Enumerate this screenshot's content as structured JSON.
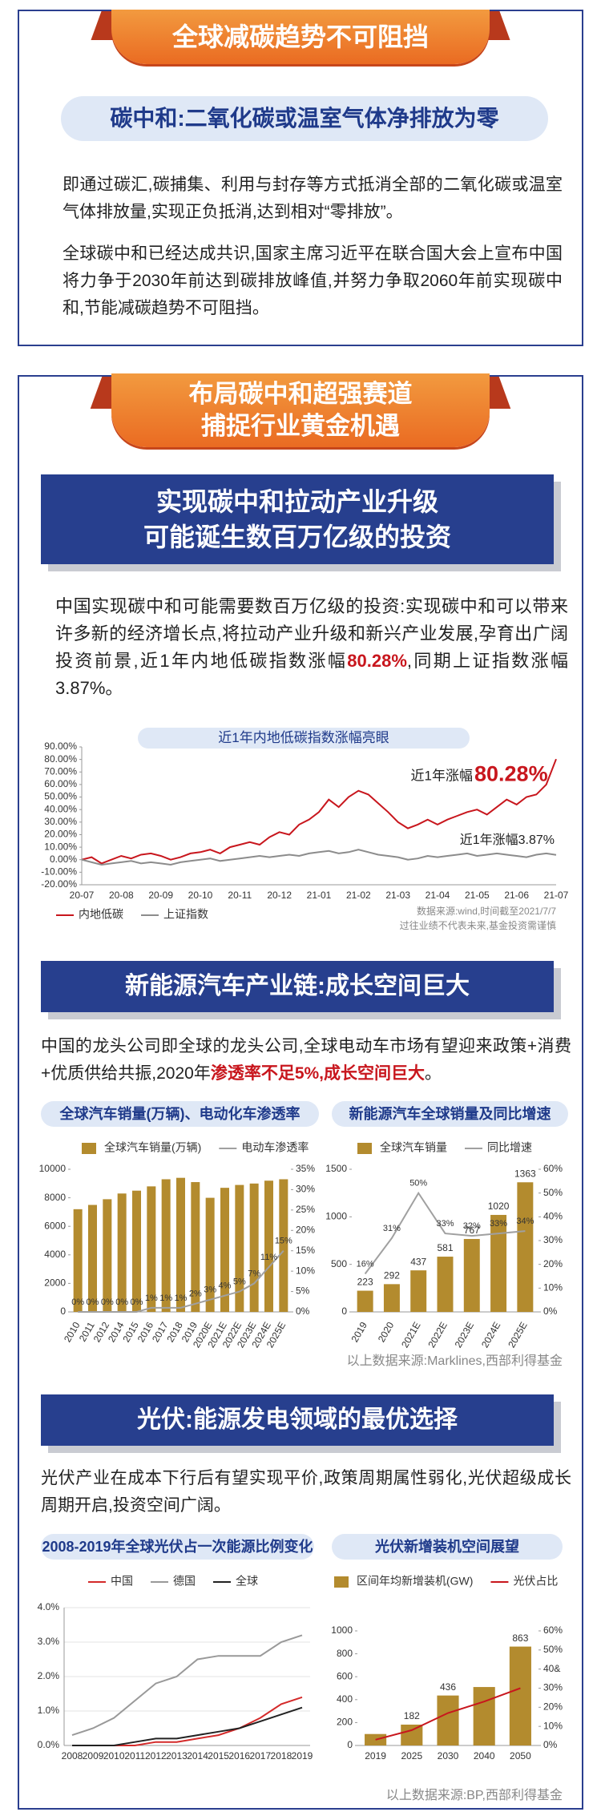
{
  "section1": {
    "banner": "全球减碳趋势不可阻挡",
    "subtitle": "碳中和:二氧化碳或温室气体净排放为零",
    "paragraphs": [
      "即通过碳汇,碳捕集、利用与封存等方式抵消全部的二氧化碳或温室气体排放量,实现正负抵消,达到相对“零排放”。",
      "全球碳中和已经达成共识,国家主席习近平在联合国大会上宣布中国将力争于2030年前达到碳排放峰值,并努力争取2060年前实现碳中和,节能减碳趋势不可阻挡。"
    ]
  },
  "section2": {
    "banner": [
      "布局碳中和超强赛道",
      "捕捉行业黄金机遇"
    ],
    "header": [
      "实现碳中和拉动产业升级",
      "可能诞生数百万亿级的投资"
    ],
    "paragraph": {
      "before": "中国实现碳中和可能需要数百万亿级的投资:实现碳中和可以带来许多新的经济增长点,将拉动产业升级和新兴产业发展,孕育出广阔投资前景,近1年内地低碳指数涨幅",
      "highlight": "80.28%",
      "after": ",同期上证指数涨幅3.87%。"
    }
  },
  "ev": {
    "header": "新能源汽车产业链:成长空间巨大",
    "paragraph": {
      "before": "中国的龙头公司即全球的龙头公司,全球电动车市场有望迎来政策+消费+优质供给共振,2020年",
      "highlight": "渗透率不足5%,成长空间巨大",
      "after": "。"
    },
    "source": "以上数据来源:Marklines,西部利得基金"
  },
  "pv": {
    "header": "光伏:能源发电领域的最优选择",
    "paragraph": "光伏产业在成本下行后有望实现平价,政策周期属性弱化,光伏超级成长周期开启,投资空间广阔。",
    "source": "以上数据来源:BP,西部利得基金"
  },
  "chart_data": [
    {
      "type": "line",
      "title": "近1年内地低碳指数涨幅亮眼",
      "categories": [
        "20-07",
        null,
        null,
        null,
        "20-08",
        null,
        null,
        null,
        "20-09",
        null,
        null,
        null,
        "20-10",
        null,
        null,
        null,
        "20-11",
        null,
        null,
        null,
        "20-12",
        null,
        null,
        null,
        "21-01",
        null,
        null,
        null,
        "21-02",
        null,
        null,
        null,
        "21-03",
        null,
        null,
        null,
        "21-04",
        null,
        null,
        null,
        "21-05",
        null,
        null,
        null,
        "21-06",
        null,
        null,
        null,
        "21-07"
      ],
      "series": [
        {
          "name": "内地低碳",
          "color": "#c8161d",
          "values": [
            0,
            2,
            -3,
            0,
            3,
            1,
            4,
            5,
            3,
            0,
            2,
            5,
            6,
            8,
            5,
            10,
            12,
            14,
            12,
            18,
            22,
            20,
            28,
            32,
            38,
            48,
            42,
            50,
            55,
            52,
            45,
            38,
            30,
            25,
            28,
            32,
            28,
            32,
            35,
            38,
            40,
            36,
            42,
            48,
            44,
            50,
            52,
            60,
            80.28
          ]
        },
        {
          "name": "上证指数",
          "color": "#8c8c8c",
          "values": [
            0,
            -2,
            -4,
            -3,
            -2,
            -1,
            -3,
            -2,
            -3,
            -4,
            -2,
            -1,
            0,
            1,
            -1,
            0,
            1,
            2,
            3,
            2,
            3,
            4,
            3,
            5,
            6,
            7,
            5,
            6,
            8,
            6,
            4,
            3,
            2,
            0,
            1,
            3,
            2,
            3,
            4,
            5,
            3,
            4,
            5,
            4,
            3,
            2,
            4,
            5,
            3.87
          ]
        }
      ],
      "ylim": [
        -20,
        90
      ],
      "yticks": [
        {
          "value": -20,
          "label": "-20.00%"
        },
        {
          "value": -10,
          "label": "-10.00%"
        },
        {
          "value": 0,
          "label": "0.00%"
        },
        {
          "value": 10,
          "label": "10.00%"
        },
        {
          "value": 20,
          "label": "20.00%"
        },
        {
          "value": 30,
          "label": "30.00%"
        },
        {
          "value": 40,
          "label": "40.00%"
        },
        {
          "value": 50,
          "label": "50.00%"
        },
        {
          "value": 60,
          "label": "60.00%"
        },
        {
          "value": 70,
          "label": "70.00%"
        },
        {
          "value": 80,
          "label": "80.00%"
        },
        {
          "value": 90,
          "label": "90.00%"
        }
      ],
      "grid": false,
      "legend": "bottom-left",
      "annotations": [
        "近1年涨幅",
        "80.28%",
        "近1年涨幅3.87%"
      ],
      "source": [
        "数据来源:wind,时间截至2021/7/7",
        "过往业绩不代表未来,基金投资需谨慎"
      ]
    },
    {
      "type": "combo",
      "title": "全球汽车销量(万辆)、电动化车渗透率",
      "categories": [
        "2010",
        "2011",
        "2012",
        "2014",
        "2015",
        "2016",
        "2017",
        "2018",
        "2019",
        "2020E",
        "2021E",
        "2022E",
        "2023E",
        "2024E",
        "2025E"
      ],
      "series": [
        {
          "name": "全球汽车销量(万辆)",
          "color": "#b38b2e",
          "mark": "bar",
          "values": [
            7200,
            7500,
            7900,
            8300,
            8500,
            8800,
            9300,
            9400,
            9100,
            8000,
            8700,
            8900,
            9000,
            9200,
            9300
          ]
        },
        {
          "name": "电动车渗透率",
          "color": "#a0a0a0",
          "mark": "line",
          "axis": "y2",
          "values": [
            0,
            0,
            0,
            0,
            0,
            1,
            1,
            1,
            2,
            3,
            4,
            5,
            7,
            11,
            15
          ],
          "value_labels": [
            "0%",
            "0%",
            "0%",
            "0%",
            "0%",
            "1%",
            "1%",
            "1%",
            "2%",
            "3%",
            "4%",
            "5%",
            "7%",
            "11%",
            "15%"
          ]
        }
      ],
      "ylim": [
        0,
        10000
      ],
      "yticks": [
        0,
        2000,
        4000,
        6000,
        8000,
        10000
      ],
      "y2lim": [
        0,
        35
      ],
      "y2ticks": [
        {
          "value": 0,
          "label": "0%"
        },
        {
          "value": 5,
          "label": "5%"
        },
        {
          "value": 10,
          "label": "10%"
        },
        {
          "value": 15,
          "label": "15%"
        },
        {
          "value": 20,
          "label": "20%"
        },
        {
          "value": 25,
          "label": "25%"
        },
        {
          "value": 30,
          "label": "30%"
        },
        {
          "value": 35,
          "label": "35%"
        }
      ],
      "legend": "top"
    },
    {
      "type": "combo",
      "title": "新能源汽车全球销量及同比增速",
      "categories": [
        "2019",
        "2020",
        "2021E",
        "2022E",
        "2023E",
        "2024E",
        "2025E"
      ],
      "series": [
        {
          "name": "全球汽车销量",
          "color": "#b38b2e",
          "mark": "bar",
          "data_labels": true,
          "values": [
            223,
            292,
            437,
            581,
            767,
            1020,
            1363
          ]
        },
        {
          "name": "同比增速",
          "color": "#a0a0a0",
          "mark": "line",
          "axis": "y2",
          "values": [
            16,
            31,
            50,
            33,
            32,
            33,
            34
          ],
          "value_labels": [
            "16%",
            "31%",
            "50%",
            "33%",
            "32%",
            "33%",
            "34%"
          ]
        }
      ],
      "ylim": [
        0,
        1500
      ],
      "yticks": [
        0,
        500,
        1000,
        1500
      ],
      "y2lim": [
        0,
        60
      ],
      "y2ticks": [
        {
          "value": 0,
          "label": "0%"
        },
        {
          "value": 10,
          "label": "10%"
        },
        {
          "value": 20,
          "label": "20%"
        },
        {
          "value": 30,
          "label": "30%"
        },
        {
          "value": 40,
          "label": "40%"
        },
        {
          "value": 50,
          "label": "50%"
        },
        {
          "value": 60,
          "label": "60%"
        }
      ],
      "legend": "top"
    },
    {
      "type": "line",
      "title": "2008-2019年全球光伏占一次能源比例变化",
      "categories": [
        "2008",
        "2009",
        "2010",
        "2011",
        "2012",
        "2013",
        "2014",
        "2015",
        "2016",
        "2017",
        "2018",
        "2019"
      ],
      "series": [
        {
          "name": "中国",
          "color": "#d42a2a",
          "values": [
            0,
            0,
            0,
            0,
            0.1,
            0.1,
            0.2,
            0.3,
            0.5,
            0.8,
            1.2,
            1.4
          ]
        },
        {
          "name": "德国",
          "color": "#999999",
          "values": [
            0.3,
            0.5,
            0.8,
            1.3,
            1.8,
            2.0,
            2.5,
            2.6,
            2.6,
            2.6,
            3.0,
            3.2
          ]
        },
        {
          "name": "全球",
          "color": "#222222",
          "values": [
            0,
            0,
            0,
            0.1,
            0.2,
            0.2,
            0.3,
            0.4,
            0.5,
            0.7,
            0.9,
            1.1
          ]
        }
      ],
      "ylim": [
        0,
        4
      ],
      "yticks": [
        {
          "value": 0,
          "label": "0.0%"
        },
        {
          "value": 1,
          "label": "1.0%"
        },
        {
          "value": 2,
          "label": "2.0%"
        },
        {
          "value": 3,
          "label": "3.0%"
        },
        {
          "value": 4,
          "label": "4.0%"
        }
      ],
      "grid": true,
      "legend": "top"
    },
    {
      "type": "combo",
      "title": "光伏新增装机空间展望",
      "categories": [
        "2019",
        "2025",
        "2030",
        "2040",
        "2050"
      ],
      "series": [
        {
          "name": "区间年均新增装机(GW)",
          "color": "#b38b2e",
          "mark": "bar",
          "values": [
            100,
            182,
            436,
            510,
            863
          ],
          "value_labels": [
            null,
            "182",
            "436",
            null,
            "863"
          ]
        },
        {
          "name": "光伏占比",
          "color": "#c8161d",
          "mark": "line",
          "axis": "y2",
          "values": [
            3,
            8,
            17,
            23,
            30
          ]
        }
      ],
      "ylim": [
        0,
        1000
      ],
      "yticks": [
        0,
        200,
        400,
        600,
        800,
        1000
      ],
      "y2lim": [
        0,
        60
      ],
      "y2ticks": [
        {
          "value": 0,
          "label": "0%"
        },
        {
          "value": 10,
          "label": "10%"
        },
        {
          "value": 20,
          "label": "20%"
        },
        {
          "value": 30,
          "label": "30%"
        },
        {
          "value": 40,
          "label": "40&"
        },
        {
          "value": 50,
          "label": "50%"
        },
        {
          "value": 60,
          "label": "60%"
        }
      ],
      "legend": "top"
    }
  ]
}
